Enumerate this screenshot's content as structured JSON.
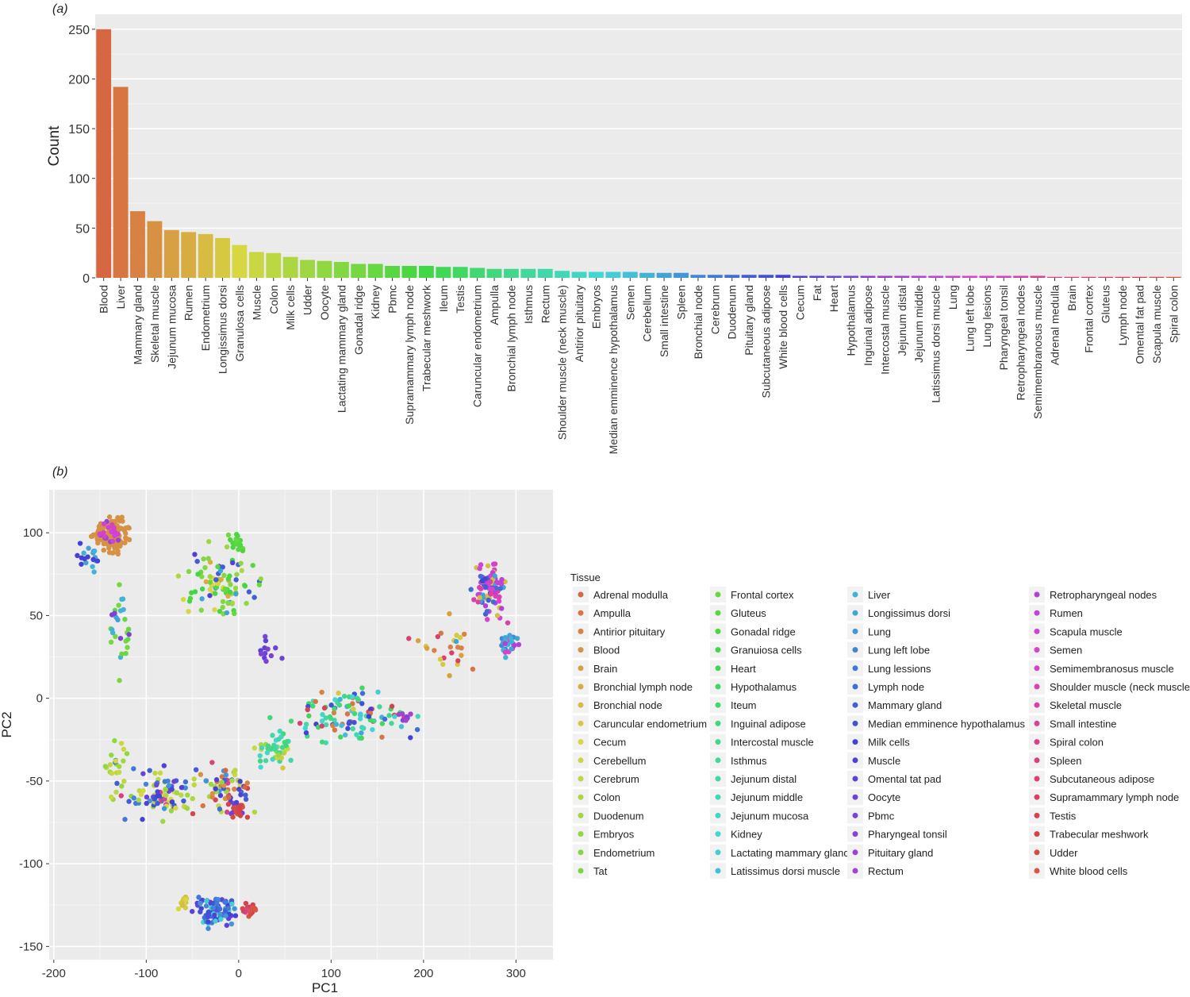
{
  "panels": {
    "a_label": "(a)",
    "b_label": "(b)"
  },
  "colors": {
    "panel_bg": "#ebebeb",
    "grid_major": "#ffffff",
    "grid_minor": "#f5f5f5"
  },
  "chart_data": [
    {
      "type": "bar",
      "xlabel": "",
      "ylabel": "Count",
      "ylim": [
        0,
        265
      ],
      "yticks": [
        0,
        50,
        100,
        150,
        200,
        250
      ],
      "grid": true,
      "categories": [
        "Blood",
        "Liver",
        "Mammary gland",
        "Skeletal muscle",
        "Jejunum mucosa",
        "Rumen",
        "Endometrium",
        "Longissimus dorsi",
        "Granulosa cells",
        "Muscle",
        "Colon",
        "Milk cells",
        "Udder",
        "Oocyte",
        "Lactating mammary gland",
        "Gonadal ridge",
        "Kidney",
        "Pbmc",
        "Supramammary lymph node",
        "Trabecular meshwork",
        "Ileum",
        "Testis",
        "Caruncular endometrium",
        "Ampulla",
        "Bronchial lymph node",
        "Isthmus",
        "Rectum",
        "Shoulder muscle (neck muscle)",
        "Antirior pituitary",
        "Embryos",
        "Median emminence hypothalamus",
        "Semen",
        "Cerebellum",
        "Small intestine",
        "Spleen",
        "Bronchial node",
        "Cerebrum",
        "Duodenum",
        "Pituitary gland",
        "Subcutaneous adipose",
        "White blood cells",
        "Cecum",
        "Fat",
        "Heart",
        "Hypothalamus",
        "Inguinal adipose",
        "Intercostal muscle",
        "Jejunum distal",
        "Jejunum middle",
        "Latissimus dorsi muscle",
        "Lung",
        "Lung left lobe",
        "Lung lesions",
        "Pharyngeal tonsil",
        "Retropharyngeal nodes",
        "Semimembranosus muscle",
        "Adrenal medulla",
        "Brain",
        "Frontal cortex",
        "Gluteus",
        "Lymph node",
        "Omental fat pad",
        "Scapula muscle",
        "Spiral colon"
      ],
      "values": [
        250,
        192,
        67,
        57,
        48,
        46,
        44,
        40,
        33,
        26,
        25,
        21,
        18,
        17,
        16,
        14,
        14,
        12,
        12,
        12,
        11,
        11,
        10,
        9,
        9,
        9,
        9,
        7,
        6,
        6,
        6,
        6,
        5,
        5,
        5,
        3,
        3,
        3,
        3,
        3,
        3,
        2,
        2,
        2,
        2,
        2,
        2,
        2,
        2,
        2,
        2,
        2,
        2,
        2,
        2,
        2,
        1,
        1,
        1,
        1,
        1,
        1,
        1,
        1
      ]
    },
    {
      "type": "scatter",
      "xlabel": "PC1",
      "ylabel": "PC2",
      "xlim": [
        -205,
        340
      ],
      "ylim": [
        -158,
        126
      ],
      "xticks": [
        -200,
        -100,
        0,
        100,
        200,
        300
      ],
      "yticks": [
        -150,
        -100,
        -50,
        0,
        50,
        100
      ],
      "grid": true,
      "legend": {
        "title": "Tissue",
        "placement": "right"
      },
      "series_names": [
        "Adrenal modulla",
        "Ampulla",
        "Antirior pituitary",
        "Blood",
        "Brain",
        "Bronchial lymph node",
        "Bronchial node",
        "Caruncular endometrium",
        "Cecum",
        "Cerebellum",
        "Cerebrum",
        "Colon",
        "Duodenum",
        "Embryos",
        "Endometrium",
        "Tat",
        "Frontal cortex",
        "Gluteus",
        "Gonadal ridge",
        "Granuiosa cells",
        "Heart",
        "Hypothalamus",
        "Iteum",
        "Inguinal adipose",
        "Intercostal muscle",
        "Isthmus",
        "Jejunum distal",
        "Jejunum middle",
        "Jejunum mucosa",
        "Kidney",
        "Lactating mammary gland",
        "Latissimus dorsi muscle",
        "Liver",
        "Longissimus dorsi",
        "Lung",
        "Lung left lobe",
        "Lung lessions",
        "Lymph node",
        "Mammary gland",
        "Median emminence hypothalamus",
        "Milk cells",
        "Muscle",
        "Omental tat pad",
        "Oocyte",
        "Pbmc",
        "Pharyngeal tonsil",
        "Pituitary gland",
        "Rectum",
        "Retropharyngeal nodes",
        "Rumen",
        "Scapula muscle",
        "Semen",
        "Semimembranosus muscle",
        "Shoulder muscle (neck muscle)",
        "Skeletal muscle",
        "Small intestine",
        "Spiral colon",
        "Spleen",
        "Subcutaneous adipose",
        "Supramammary lymph node",
        "Testis",
        "Trabecular meshwork",
        "Udder",
        "White blood cells"
      ],
      "clusters": [
        {
          "cx": -137,
          "cy": 98,
          "sx": 15,
          "sy": 9,
          "n": 150,
          "series": [
            3
          ]
        },
        {
          "cx": -140,
          "cy": 100,
          "sx": 10,
          "sy": 7,
          "n": 25,
          "series": [
            46,
            47,
            50,
            52
          ]
        },
        {
          "cx": -165,
          "cy": 85,
          "sx": 12,
          "sy": 8,
          "n": 18,
          "series": [
            32,
            33,
            40
          ]
        },
        {
          "cx": -130,
          "cy": 40,
          "sx": 12,
          "sy": 25,
          "n": 28,
          "series": [
            32,
            33,
            15,
            16,
            44
          ]
        },
        {
          "cx": -20,
          "cy": 70,
          "sx": 35,
          "sy": 17,
          "n": 95,
          "series": [
            14,
            16,
            17,
            18,
            19,
            11,
            12,
            13,
            38,
            41,
            33,
            8,
            5
          ]
        },
        {
          "cx": 30,
          "cy": 30,
          "sx": 12,
          "sy": 8,
          "n": 12,
          "series": [
            42,
            43,
            44
          ]
        },
        {
          "cx": 0,
          "cy": 95,
          "sx": 8,
          "sy": 7,
          "n": 18,
          "series": [
            15,
            16,
            17,
            18
          ]
        },
        {
          "cx": 272,
          "cy": 67,
          "sx": 16,
          "sy": 16,
          "n": 90,
          "series": [
            48,
            49,
            50,
            51,
            53,
            54,
            37,
            38,
            40,
            33,
            6
          ]
        },
        {
          "cx": 292,
          "cy": 33,
          "sx": 8,
          "sy": 7,
          "n": 30,
          "series": [
            32,
            33,
            35,
            48,
            51
          ]
        },
        {
          "cx": 120,
          "cy": -10,
          "sx": 55,
          "sy": 15,
          "n": 110,
          "series": [
            20,
            21,
            22,
            23,
            24,
            25,
            26,
            27,
            28,
            29,
            30,
            31,
            32,
            33,
            37,
            39,
            40,
            7,
            1,
            2,
            58,
            59,
            60
          ]
        },
        {
          "cx": 220,
          "cy": 30,
          "sx": 25,
          "sy": 15,
          "n": 25,
          "series": [
            1,
            2,
            4,
            7,
            33,
            58,
            59
          ]
        },
        {
          "cx": -85,
          "cy": -58,
          "sx": 35,
          "sy": 12,
          "n": 85,
          "series": [
            8,
            9,
            10,
            11,
            12,
            13,
            34,
            35,
            36,
            38,
            39,
            40,
            41,
            43,
            55,
            57,
            60
          ]
        },
        {
          "cx": -15,
          "cy": -55,
          "sx": 30,
          "sy": 12,
          "n": 70,
          "series": [
            0,
            1,
            2,
            3,
            9,
            10,
            11,
            12,
            13,
            34,
            37,
            38,
            40,
            41,
            56,
            57,
            60,
            61
          ]
        },
        {
          "cx": 40,
          "cy": -30,
          "sx": 18,
          "sy": 10,
          "n": 45,
          "series": [
            7,
            8,
            9,
            11,
            12,
            23,
            24,
            25,
            26,
            27,
            28,
            29
          ]
        },
        {
          "cx": -130,
          "cy": -45,
          "sx": 12,
          "sy": 20,
          "n": 25,
          "series": [
            8,
            9,
            10,
            11,
            12,
            13,
            35,
            36,
            38
          ]
        },
        {
          "cx": 0,
          "cy": -68,
          "sx": 10,
          "sy": 5,
          "n": 30,
          "series": [
            60,
            61,
            62,
            63,
            41,
            43
          ]
        },
        {
          "cx": -25,
          "cy": -128,
          "sx": 17,
          "sy": 8,
          "n": 95,
          "series": [
            35,
            36,
            37,
            38,
            39,
            40,
            41,
            42,
            34,
            29,
            30
          ]
        },
        {
          "cx": 12,
          "cy": -128,
          "sx": 6,
          "sy": 3,
          "n": 30,
          "series": [
            59,
            60,
            61,
            62,
            63,
            55
          ]
        },
        {
          "cx": -60,
          "cy": -123,
          "sx": 5,
          "sy": 4,
          "n": 12,
          "series": [
            6,
            7,
            8
          ]
        },
        {
          "cx": 180,
          "cy": -12,
          "sx": 8,
          "sy": 3,
          "n": 8,
          "series": [
            45,
            46,
            47
          ]
        }
      ]
    }
  ]
}
